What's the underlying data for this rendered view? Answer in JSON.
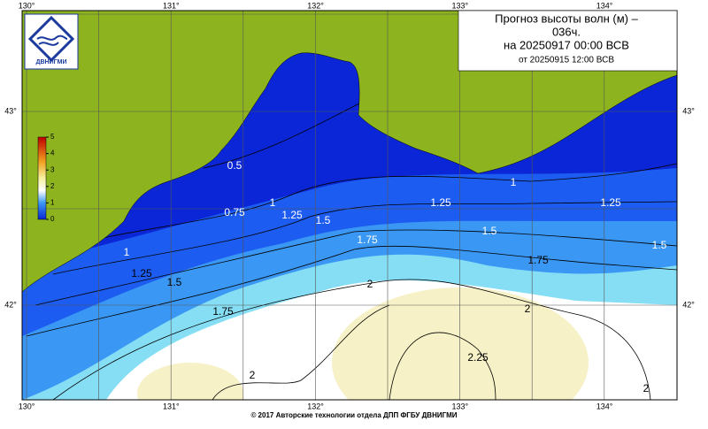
{
  "title_lines": [
    "Прогноз высоты волн (м) –",
    "036ч.",
    "на 20250917 00:00 ВСВ",
    "от 20250915 12:00 ВСВ"
  ],
  "logo": "ДВНИГМИ",
  "lon_labels": [
    "130°",
    "131°",
    "132°",
    "133°",
    "134°"
  ],
  "lat_labels": [
    "43°",
    "42°"
  ],
  "colorbar": {
    "ticks": [
      0,
      1,
      2,
      3,
      4,
      5
    ]
  },
  "contour_labels": [
    "0.5",
    "0.75",
    "1",
    "1.25",
    "1.5",
    "1.75",
    "2",
    "2",
    "1",
    "1.25",
    "1.25",
    "1.5",
    "1.5",
    "1.75",
    "1",
    "1.25",
    "1.5",
    "1.75",
    "2",
    "2.25",
    "2"
  ],
  "footer": "© 2017 Авторские технологии отдела ДПП ФГБУ ДВНИГМИ"
}
